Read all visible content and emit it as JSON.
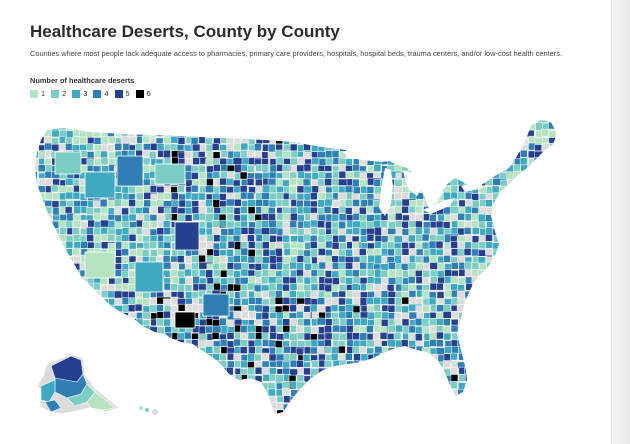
{
  "title": "Healthcare Deserts, County by County",
  "subtitle": "Counties where most people lack adequate access to pharmacies, primary care providers, hospitals, hospital beds, trauma centers, and/or low-cost health centers.",
  "legend": {
    "title": "Number of healthcare deserts",
    "items": [
      {
        "label": "1",
        "color": "#b6e3c2"
      },
      {
        "label": "2",
        "color": "#7ccdc4"
      },
      {
        "label": "3",
        "color": "#3ea9c0"
      },
      {
        "label": "4",
        "color": "#2f7fb5"
      },
      {
        "label": "5",
        "color": "#263f8f"
      },
      {
        "label": "6",
        "color": "#000000"
      }
    ]
  },
  "colors": {
    "no_data": "#dcdcdc",
    "border": "#ffffff"
  },
  "map_icon": "us-county-choropleth-map"
}
